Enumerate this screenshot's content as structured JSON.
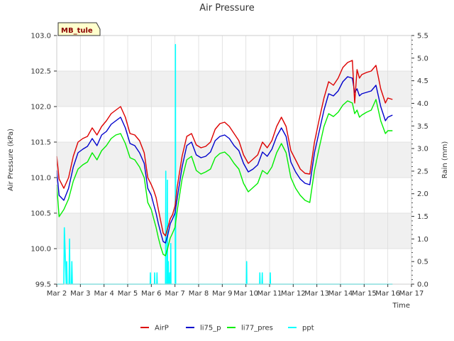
{
  "chart_data": {
    "type": "line",
    "title": "Air Pressure",
    "site_label": "MB_tule",
    "xlabel": "Time",
    "ylabel": "Air Pressure (kPa)",
    "y2label": "Rain (mm)",
    "xlim": [
      2,
      17
    ],
    "ylim": [
      99.5,
      103.0
    ],
    "y2lim": [
      0.0,
      5.5
    ],
    "xticks": [
      2,
      3,
      4,
      5,
      6,
      7,
      8,
      9,
      10,
      11,
      12,
      13,
      14,
      15,
      16,
      17
    ],
    "xtick_labels": [
      "Mar 2",
      "Mar 3",
      "Mar 4",
      "Mar 5",
      "Mar 6",
      "Mar 7",
      "Mar 8",
      "Mar 9",
      "Mar 10",
      "Mar 11",
      "Mar 12",
      "Mar 13",
      "Mar 14",
      "Mar 15",
      "Mar 16",
      "Mar 17"
    ],
    "yticks": [
      99.5,
      100.0,
      100.5,
      101.0,
      101.5,
      102.0,
      102.5,
      103.0
    ],
    "ytick_labels": [
      "99.5",
      "100.0",
      "100.5",
      "101.0",
      "101.5",
      "102.0",
      "102.5",
      "103.0"
    ],
    "y2ticks": [
      0.0,
      0.5,
      1.0,
      1.5,
      2.0,
      2.5,
      3.0,
      3.5,
      4.0,
      4.5,
      5.0,
      5.5
    ],
    "y2tick_labels": [
      "0.0",
      "0.5",
      "1.0",
      "1.5",
      "2.0",
      "2.5",
      "3.0",
      "3.5",
      "4.0",
      "4.5",
      "5.0",
      "5.5"
    ],
    "colors": {
      "AirP": "#dd0000",
      "li75_p": "#0000cc",
      "li77_pres": "#00ee00",
      "ppt": "#00ffff",
      "band": "#f0f0f0",
      "grid": "#dcdcdc"
    },
    "series": [
      {
        "name": "AirP",
        "axis": "left",
        "x": [
          2.0,
          2.1,
          2.3,
          2.5,
          2.7,
          2.9,
          3.1,
          3.3,
          3.5,
          3.7,
          3.9,
          4.1,
          4.3,
          4.5,
          4.7,
          4.9,
          5.1,
          5.3,
          5.5,
          5.7,
          5.85,
          6.0,
          6.1,
          6.2,
          6.3,
          6.4,
          6.5,
          6.6,
          6.7,
          6.8,
          6.9,
          7.0,
          7.1,
          7.3,
          7.5,
          7.7,
          7.9,
          8.1,
          8.3,
          8.5,
          8.7,
          8.9,
          9.1,
          9.3,
          9.5,
          9.7,
          9.9,
          10.1,
          10.3,
          10.5,
          10.7,
          10.9,
          11.1,
          11.3,
          11.5,
          11.7,
          11.9,
          12.1,
          12.3,
          12.5,
          12.7,
          12.9,
          13.1,
          13.3,
          13.5,
          13.7,
          13.9,
          14.1,
          14.3,
          14.5,
          14.6,
          14.7,
          14.8,
          14.9,
          15.1,
          15.3,
          15.5,
          15.7,
          15.9,
          16.0,
          16.2
        ],
        "y": [
          101.3,
          100.98,
          100.85,
          101.0,
          101.3,
          101.5,
          101.55,
          101.58,
          101.7,
          101.6,
          101.72,
          101.8,
          101.9,
          101.95,
          102.0,
          101.85,
          101.62,
          101.6,
          101.52,
          101.35,
          101.0,
          100.9,
          100.82,
          100.72,
          100.55,
          100.38,
          100.22,
          100.18,
          100.3,
          100.42,
          100.48,
          100.6,
          100.88,
          101.3,
          101.58,
          101.62,
          101.46,
          101.42,
          101.44,
          101.5,
          101.68,
          101.76,
          101.78,
          101.72,
          101.62,
          101.52,
          101.32,
          101.2,
          101.26,
          101.32,
          101.5,
          101.42,
          101.52,
          101.72,
          101.85,
          101.72,
          101.38,
          101.25,
          101.12,
          101.06,
          101.05,
          101.5,
          101.82,
          102.12,
          102.35,
          102.3,
          102.4,
          102.55,
          102.62,
          102.65,
          102.05,
          102.52,
          102.4,
          102.45,
          102.48,
          102.5,
          102.58,
          102.25,
          102.05,
          102.12,
          102.1
        ]
      },
      {
        "name": "li75_p",
        "axis": "left",
        "x": [
          2.0,
          2.1,
          2.3,
          2.5,
          2.7,
          2.9,
          3.1,
          3.3,
          3.5,
          3.7,
          3.9,
          4.1,
          4.3,
          4.5,
          4.7,
          4.9,
          5.1,
          5.3,
          5.5,
          5.7,
          5.85,
          6.0,
          6.1,
          6.2,
          6.3,
          6.4,
          6.5,
          6.6,
          6.7,
          6.8,
          6.9,
          7.0,
          7.1,
          7.3,
          7.5,
          7.7,
          7.9,
          8.1,
          8.3,
          8.5,
          8.7,
          8.9,
          9.1,
          9.3,
          9.5,
          9.7,
          9.9,
          10.1,
          10.3,
          10.5,
          10.7,
          10.9,
          11.1,
          11.3,
          11.5,
          11.7,
          11.9,
          12.1,
          12.3,
          12.5,
          12.7,
          12.9,
          13.1,
          13.3,
          13.5,
          13.7,
          13.9,
          14.1,
          14.3,
          14.5,
          14.6,
          14.7,
          14.8,
          14.9,
          15.1,
          15.3,
          15.5,
          15.7,
          15.9,
          16.0,
          16.2
        ],
        "y": [
          101.1,
          100.75,
          100.68,
          100.85,
          101.15,
          101.35,
          101.4,
          101.44,
          101.55,
          101.45,
          101.6,
          101.65,
          101.75,
          101.8,
          101.85,
          101.7,
          101.48,
          101.45,
          101.35,
          101.2,
          100.85,
          100.75,
          100.62,
          100.5,
          100.35,
          100.22,
          100.1,
          100.08,
          100.2,
          100.35,
          100.42,
          100.5,
          100.72,
          101.15,
          101.45,
          101.5,
          101.32,
          101.28,
          101.3,
          101.36,
          101.52,
          101.58,
          101.6,
          101.55,
          101.45,
          101.38,
          101.2,
          101.08,
          101.12,
          101.18,
          101.36,
          101.3,
          101.4,
          101.58,
          101.7,
          101.58,
          101.22,
          101.08,
          100.98,
          100.92,
          100.9,
          101.35,
          101.65,
          101.95,
          102.18,
          102.15,
          102.22,
          102.35,
          102.42,
          102.4,
          102.2,
          102.25,
          102.15,
          102.18,
          102.2,
          102.22,
          102.3,
          102.0,
          101.8,
          101.85,
          101.88
        ]
      },
      {
        "name": "li77_pres",
        "axis": "left",
        "x": [
          2.0,
          2.1,
          2.3,
          2.5,
          2.7,
          2.9,
          3.1,
          3.3,
          3.5,
          3.7,
          3.9,
          4.1,
          4.3,
          4.5,
          4.7,
          4.9,
          5.1,
          5.3,
          5.5,
          5.7,
          5.85,
          6.0,
          6.1,
          6.2,
          6.3,
          6.4,
          6.5,
          6.6,
          6.7,
          6.8,
          6.9,
          7.0,
          7.1,
          7.3,
          7.5,
          7.7,
          7.9,
          8.1,
          8.3,
          8.5,
          8.7,
          8.9,
          9.1,
          9.3,
          9.5,
          9.7,
          9.9,
          10.1,
          10.3,
          10.5,
          10.7,
          10.9,
          11.1,
          11.3,
          11.5,
          11.7,
          11.9,
          12.1,
          12.3,
          12.5,
          12.7,
          12.9,
          13.1,
          13.3,
          13.5,
          13.7,
          13.9,
          14.1,
          14.3,
          14.5,
          14.6,
          14.7,
          14.8,
          14.9,
          15.1,
          15.3,
          15.5,
          15.7,
          15.9,
          16.0,
          16.2
        ],
        "y": [
          100.9,
          100.45,
          100.55,
          100.7,
          100.95,
          101.12,
          101.18,
          101.22,
          101.35,
          101.25,
          101.38,
          101.45,
          101.55,
          101.6,
          101.62,
          101.48,
          101.28,
          101.25,
          101.15,
          101.0,
          100.65,
          100.55,
          100.42,
          100.3,
          100.15,
          100.02,
          99.92,
          99.9,
          100.02,
          100.15,
          100.22,
          100.3,
          100.55,
          100.98,
          101.25,
          101.3,
          101.1,
          101.05,
          101.08,
          101.12,
          101.28,
          101.34,
          101.36,
          101.3,
          101.2,
          101.12,
          100.92,
          100.8,
          100.86,
          100.92,
          101.1,
          101.05,
          101.15,
          101.35,
          101.48,
          101.35,
          101.0,
          100.85,
          100.75,
          100.68,
          100.65,
          101.1,
          101.42,
          101.72,
          101.9,
          101.86,
          101.92,
          102.02,
          102.08,
          102.05,
          101.9,
          101.95,
          101.85,
          101.88,
          101.92,
          101.95,
          102.1,
          101.8,
          101.62,
          101.66,
          101.66
        ]
      },
      {
        "name": "ppt",
        "axis": "right",
        "x": [
          2.0,
          2.3,
          2.32,
          2.4,
          2.42,
          2.44,
          2.52,
          2.54,
          2.56,
          2.62,
          2.64,
          2.66,
          5.95,
          5.96,
          5.97,
          6.13,
          6.14,
          6.15,
          6.23,
          6.24,
          6.25,
          6.6,
          6.61,
          6.62,
          6.67,
          6.68,
          6.69,
          6.71,
          6.72,
          6.73,
          6.77,
          6.78,
          6.79,
          6.81,
          6.82,
          6.83,
          7.01,
          7.02,
          7.03,
          10.02,
          10.03,
          10.04,
          10.58,
          10.59,
          10.6,
          10.68,
          10.69,
          10.7,
          11.02,
          11.03,
          11.04,
          16.2
        ],
        "y": [
          0.0,
          0.0,
          1.25,
          0.0,
          0.5,
          0.0,
          0.0,
          1.0,
          0.0,
          0.0,
          0.5,
          0.0,
          0.0,
          0.25,
          0.0,
          0.0,
          0.25,
          0.0,
          0.0,
          0.25,
          0.0,
          0.0,
          2.5,
          0.0,
          0.0,
          2.3,
          0.0,
          0.0,
          0.5,
          0.0,
          0.0,
          0.25,
          0.0,
          0.0,
          0.9,
          0.0,
          0.0,
          5.3,
          0.0,
          0.0,
          0.5,
          0.0,
          0.0,
          0.25,
          0.0,
          0.0,
          0.25,
          0.0,
          0.0,
          0.25,
          0.0,
          0.0
        ]
      }
    ]
  }
}
